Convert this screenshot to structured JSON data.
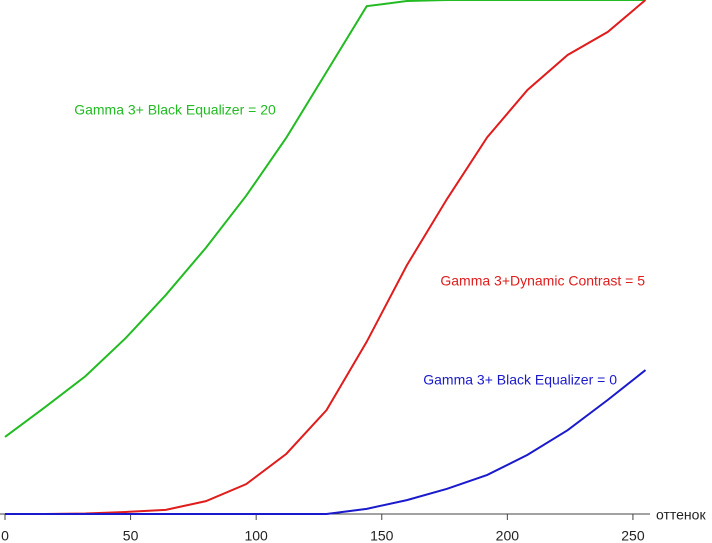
{
  "chart_data": {
    "type": "line",
    "x_label": "оттенок",
    "x": [
      0,
      16,
      32,
      48,
      64,
      80,
      96,
      112,
      128,
      144,
      160,
      176,
      192,
      208,
      224,
      240,
      255
    ],
    "series": [
      {
        "name": "Gamma 3+ Black Equalizer = 20",
        "color": "#22bb22",
        "values": [
          15,
          20.8,
          26.8,
          34.2,
          42.6,
          51.8,
          61.9,
          73.2,
          86,
          98.8,
          99.8,
          100,
          100,
          100,
          100,
          100,
          100
        ]
      },
      {
        "name": "Gamma 3+Dynamic Contrast = 5",
        "color": "#e01c1c",
        "values": [
          0,
          0,
          0.1,
          0.4,
          0.8,
          2.5,
          5.8,
          11.7,
          20.2,
          33.5,
          48.4,
          61.3,
          73.3,
          82.5,
          89.3,
          93.8,
          100
        ]
      },
      {
        "name": "Gamma 3+ Black Equalizer = 0",
        "color": "#1a1acc",
        "values": [
          0,
          0,
          0,
          0,
          0,
          0,
          0,
          0,
          0,
          1,
          2.7,
          4.9,
          7.6,
          11.5,
          16.3,
          22.2,
          28
        ]
      }
    ],
    "xlim": [
      0,
      256
    ],
    "xticks": [
      0,
      50,
      100,
      150,
      200,
      250
    ],
    "ylim": [
      0,
      100
    ]
  }
}
